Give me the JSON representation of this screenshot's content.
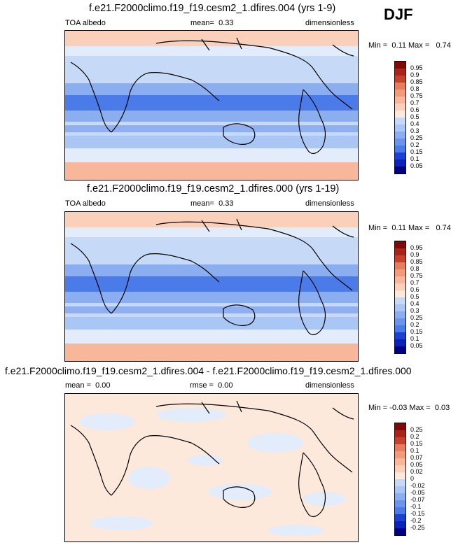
{
  "season": "DJF",
  "colors": {
    "albedo_scale": [
      "#000080",
      "#0a22b5",
      "#1d3fd4",
      "#2f5ee8",
      "#4a7be8",
      "#6c94ec",
      "#8aaeef",
      "#a9c6f4",
      "#c6daf8",
      "#e3ecfb",
      "#fde8dc",
      "#fbd0ba",
      "#f8b79a",
      "#f19b7a",
      "#e57e60",
      "#d75f44",
      "#c4422d",
      "#a82318",
      "#7f0808"
    ],
    "diff_scale": [
      "#000080",
      "#0a22b5",
      "#1d3fd4",
      "#2f5ee8",
      "#4a7be8",
      "#6c94ec",
      "#8aaeef",
      "#a9c6f4",
      "#c6daf8",
      "#e3ecfb",
      "#fde8dc",
      "#fbd0ba",
      "#f8b79a",
      "#f19b7a",
      "#e57e60",
      "#d75f44",
      "#c4422d",
      "#a82318",
      "#7f0808"
    ]
  },
  "chart_data": [
    {
      "type": "heatmap",
      "title": "f.e21.F2000climo.f19_f19.cesm2_1.dfires.004 (yrs 1-9)",
      "variable": "TOA albedo",
      "mean_label": "mean=",
      "mean": "0.33",
      "units": "dimensionless",
      "min_label": "Min =",
      "min": "0.11",
      "max_label": "Max =",
      "max": "0.74",
      "colorbar_levels": [
        "0.05",
        "0.1",
        "0.15",
        "0.2",
        "0.25",
        "0.3",
        "0.4",
        "0.5",
        "0.6",
        "0.7",
        "0.75",
        "0.8",
        "0.85",
        "0.9",
        "0.95"
      ]
    },
    {
      "type": "heatmap",
      "title": "f.e21.F2000climo.f19_f19.cesm2_1.dfires.000 (yrs 1-19)",
      "variable": "TOA albedo",
      "mean_label": "mean=",
      "mean": "0.33",
      "units": "dimensionless",
      "min_label": "Min =",
      "min": "0.11",
      "max_label": "Max =",
      "max": "0.74",
      "colorbar_levels": [
        "0.05",
        "0.1",
        "0.15",
        "0.2",
        "0.25",
        "0.3",
        "0.4",
        "0.5",
        "0.6",
        "0.7",
        "0.75",
        "0.8",
        "0.85",
        "0.9",
        "0.95"
      ]
    },
    {
      "type": "heatmap",
      "title": "f.e21.F2000climo.f19_f19.cesm2_1.dfires.004 - f.e21.F2000climo.f19_f19.cesm2_1.dfires.000",
      "mean_label": "mean =",
      "mean": "0.00",
      "rmse_label": "rmse =",
      "rmse": "0.00",
      "units": "dimensionless",
      "min_label": "Min =",
      "min": "-0.03",
      "max_label": "Max =",
      "max": "0.03",
      "colorbar_levels": [
        "-0.25",
        "-0.2",
        "-0.15",
        "-0.1",
        "-0.07",
        "-0.05",
        "-0.02",
        "0",
        "0.02",
        "0.05",
        "0.07",
        "0.1",
        "0.15",
        "0.2",
        "0.25"
      ]
    }
  ]
}
